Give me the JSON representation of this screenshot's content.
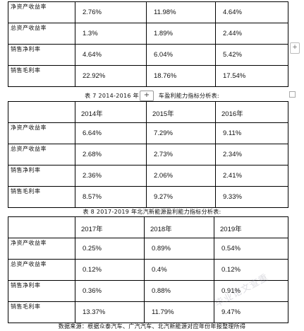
{
  "table6": {
    "rows": [
      {
        "label": "净资产收益率",
        "values": [
          "2.76%",
          "11.98%",
          "4.64%"
        ]
      },
      {
        "label": "总资产收益率",
        "values": [
          "1.3%",
          "1.89%",
          "2.44%"
        ]
      },
      {
        "label": "销售净利率",
        "values": [
          "4.64%",
          "6.04%",
          "5.42%"
        ]
      },
      {
        "label": "销售毛利率",
        "values": [
          "22.92%",
          "18.76%",
          "17.54%"
        ]
      }
    ]
  },
  "table7": {
    "caption_left": "表 7 2014-2016 年",
    "caption_right": "车盈利能力指标分析表:",
    "headers": [
      "2014年",
      "2015年",
      "2016年"
    ],
    "rows": [
      {
        "label": "净资产收益率",
        "values": [
          "6.64%",
          "7.29%",
          "9.11%"
        ]
      },
      {
        "label": "总资产收益率",
        "values": [
          "2.68%",
          "2.73%",
          "2.34%"
        ]
      },
      {
        "label": "销售净利率",
        "values": [
          "2.36%",
          "2.06%",
          "2.41%"
        ]
      },
      {
        "label": "销售毛利率",
        "values": [
          "8.57%",
          "9.27%",
          "9.33%"
        ]
      }
    ]
  },
  "table8": {
    "caption": "表 8 2017-2019 年北汽新能源盈利能力指标分析表:",
    "headers": [
      "2017年",
      "2018年",
      "2019年"
    ],
    "rows": [
      {
        "label": "净资产收益率",
        "values": [
          "0.25%",
          "0.89%",
          "0.54%"
        ]
      },
      {
        "label": "总资产收益率",
        "values": [
          "0.12%",
          "0.4%",
          "0.12%"
        ]
      },
      {
        "label": "销售净利率",
        "values": [
          "0.36%",
          "0.88%",
          "0.91%"
        ]
      },
      {
        "label": "销售毛利率",
        "values": [
          "13.37%",
          "11.79%",
          "9.47%"
        ]
      }
    ]
  },
  "footer": "数据来源：根据众泰汽车、广汽汽车、北汽新能源对应年份年报整理所得",
  "controls": {
    "add_glyph": "+",
    "side_glyph": "+"
  },
  "watermark": "毕业论文查重"
}
